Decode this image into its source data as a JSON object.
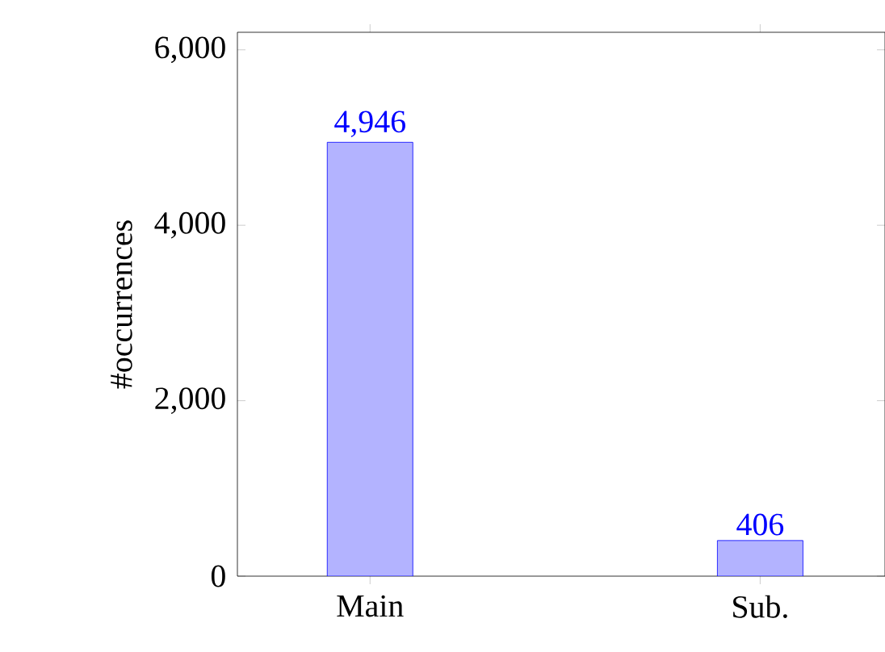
{
  "chart_data": {
    "type": "bar",
    "ylabel": "#occurrences",
    "categories": [
      "Main",
      "Sub."
    ],
    "values": [
      4946,
      406
    ],
    "value_labels": [
      "4,946",
      "406"
    ],
    "color": "#b3b3ff",
    "ylim": [
      0,
      6200
    ],
    "yticks": [
      0,
      {
        "value": 2000,
        "label": "2,000"
      },
      {
        "value": 4000,
        "label": "4,000"
      },
      {
        "value": 6000,
        "label": "6,000"
      }
    ]
  }
}
